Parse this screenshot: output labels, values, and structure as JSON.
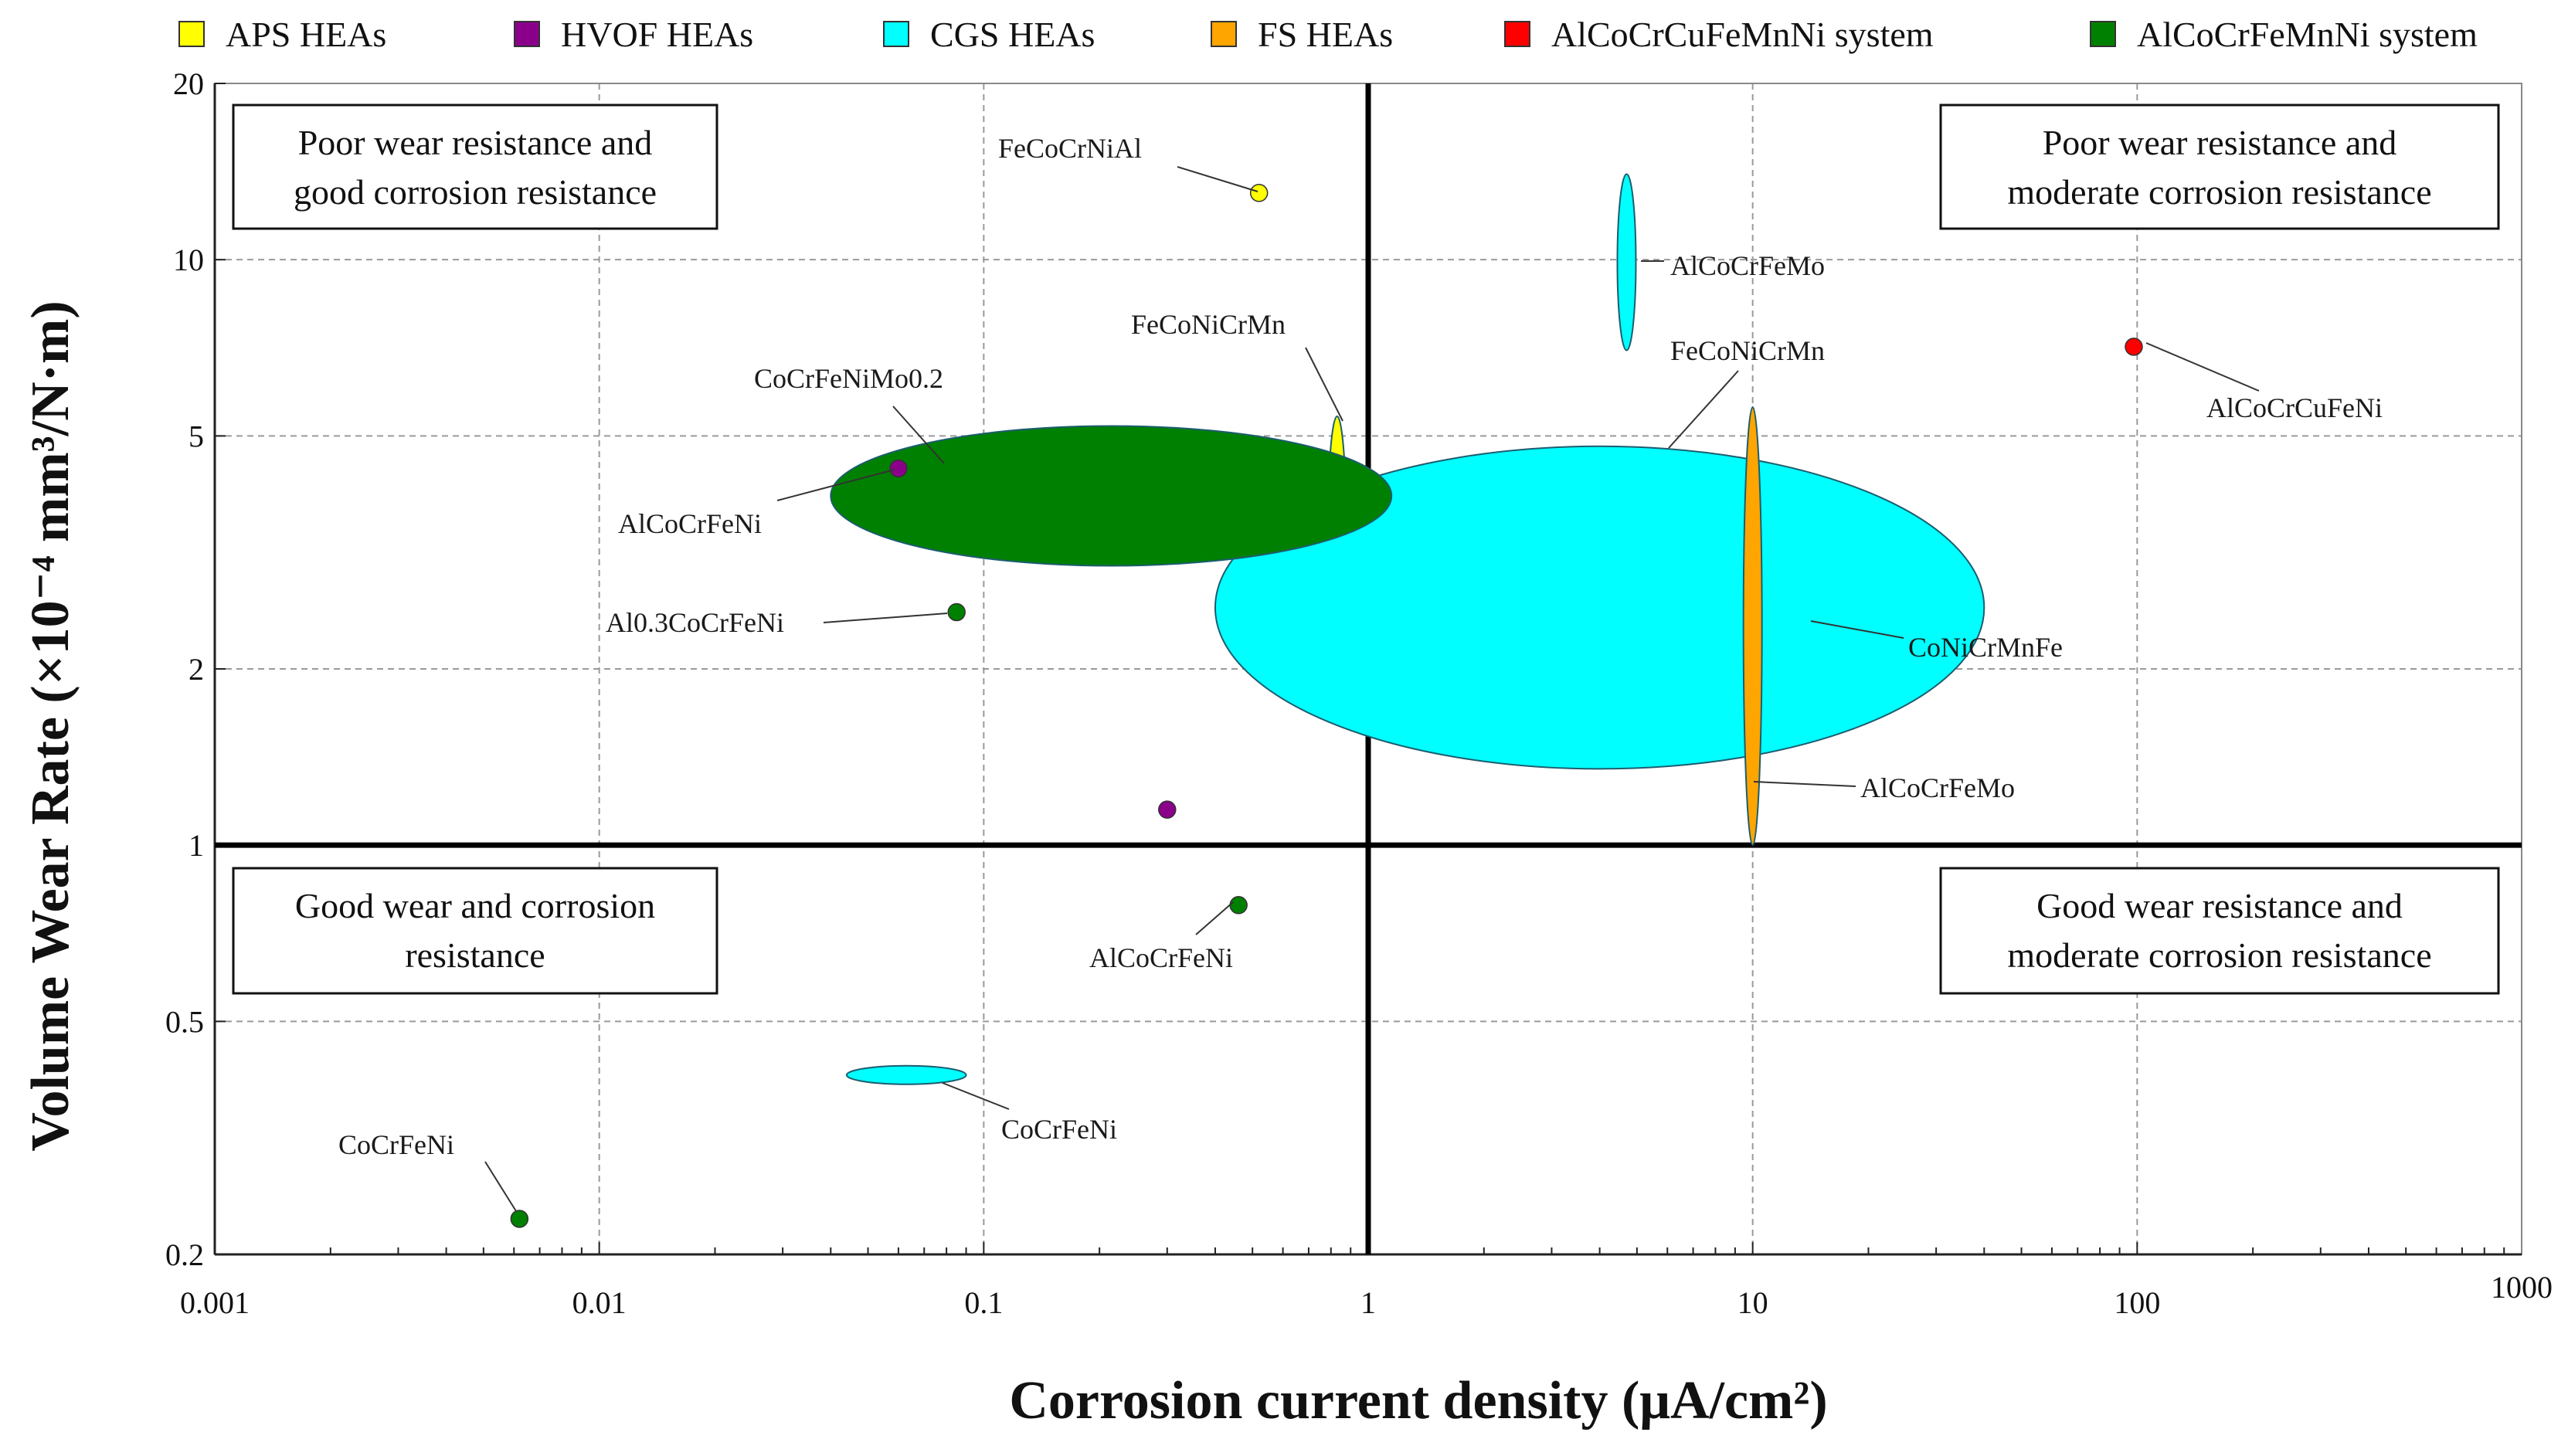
{
  "chart_data": {
    "type": "scatter",
    "title": "",
    "xlabel": "Corrosion current density (μA/cm²)",
    "ylabel": "Volume Wear Rate (×10⁻⁴ mm³/N·m)",
    "xscale": "log",
    "yscale": "log",
    "xlim": [
      0.001,
      1000
    ],
    "ylim": [
      0.2,
      20
    ],
    "x_ticks": [
      "0.001",
      "0.01",
      "0.1",
      "1",
      "10",
      "100",
      "1000"
    ],
    "y_ticks": [
      "0.2",
      "0.5",
      "1",
      "2",
      "5",
      "10",
      "20"
    ],
    "grid": "dashed, on",
    "legend_position": "top",
    "divider_lines": {
      "x": 1,
      "y": 1
    },
    "series": [
      {
        "name": "APS HEAs",
        "color": "#ffff00"
      },
      {
        "name": "HVOF HEAs",
        "color": "#8b008b"
      },
      {
        "name": "CGS HEAs",
        "color": "#00ffff"
      },
      {
        "name": "FS HEAs",
        "color": "#ffa500"
      },
      {
        "name": "AlCoCrCuFeMnNi  system",
        "color": "#ff0000"
      },
      {
        "name": "AlCoCrFeMnNi  system",
        "color": "#008000"
      }
    ],
    "quadrants": [
      {
        "lines": [
          "Poor wear resistance and",
          "good corrosion resistance"
        ]
      },
      {
        "lines": [
          "Poor wear resistance and",
          "moderate corrosion resistance"
        ]
      },
      {
        "lines": [
          "Good wear and corrosion",
          "resistance"
        ]
      },
      {
        "lines": [
          "Good wear resistance and",
          "moderate corrosion resistance"
        ]
      }
    ],
    "points": [
      {
        "label": "FeCoCrNiAl",
        "series": "APS HEAs",
        "x": 0.52,
        "y": 13,
        "shape": "point"
      },
      {
        "label": "FeCoNiCrMn",
        "series": "APS HEAs",
        "x": 0.83,
        "y": 3.45,
        "y_range": [
          2.2,
          5.4
        ],
        "shape": "ellipse"
      },
      {
        "label": "AlCoCrFeMo",
        "series": "CGS HEAs",
        "x": 4.7,
        "y": 10,
        "y_range": [
          7.0,
          14.0
        ],
        "shape": "ellipse"
      },
      {
        "label": "FeCoNiCrMn",
        "series": "CGS HEAs",
        "x": 6.0,
        "y": 3.1,
        "y_range": [
          1.8,
          4.6
        ],
        "shape": "ellipse"
      },
      {
        "label": "CoNiCrMnFe",
        "series": "CGS HEAs",
        "x": 4.0,
        "y": 2.55,
        "x_range": [
          0.4,
          40
        ],
        "y_range": [
          1.35,
          4.8
        ],
        "shape": "ellipse"
      },
      {
        "label": "AlCoCrFeMo",
        "series": "FS HEAs",
        "x": 10,
        "y": 2.4,
        "y_range": [
          1.0,
          5.6
        ],
        "shape": "ellipse"
      },
      {
        "label": "AlCoCrCuFeNi",
        "series": "AlCoCrCuFeMnNi  system",
        "x": 98,
        "y": 7.1,
        "shape": "point"
      },
      {
        "label": "CoCrFeNiMo0.2",
        "series": "AlCoCrFeMnNi  system",
        "x": 0.21,
        "y": 3.95,
        "x_range": [
          0.04,
          1.15
        ],
        "y_range": [
          3.0,
          5.2
        ],
        "shape": "ellipse"
      },
      {
        "label": "AlCoCrFeNi",
        "series": "HVOF HEAs",
        "x": 0.06,
        "y": 4.4,
        "shape": "point"
      },
      {
        "label": "Al0.3CoCrFeNi",
        "series": "AlCoCrFeMnNi  system",
        "x": 0.085,
        "y": 2.5,
        "shape": "point"
      },
      {
        "label": "",
        "series": "HVOF HEAs",
        "x": 0.3,
        "y": 1.15,
        "shape": "point"
      },
      {
        "label": "AlCoCrFeNi",
        "series": "AlCoCrFeMnNi  system",
        "x": 0.46,
        "y": 0.79,
        "shape": "point"
      },
      {
        "label": "CoCrFeNi",
        "series": "CGS HEAs",
        "x": 0.063,
        "y": 0.405,
        "x_range": [
          0.044,
          0.09
        ],
        "shape": "ellipse"
      },
      {
        "label": "CoCrFeNi",
        "series": "AlCoCrFeMnNi  system",
        "x": 0.0062,
        "y": 0.23,
        "shape": "point"
      }
    ]
  }
}
